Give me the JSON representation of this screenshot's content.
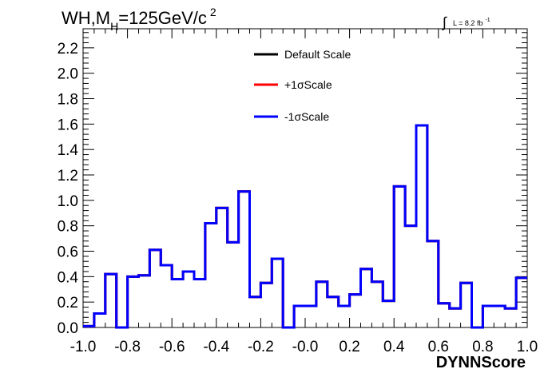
{
  "chart_data": {
    "type": "line",
    "subtype": "step-histogram",
    "title": {
      "prefix": "WH,M",
      "subscript": "H",
      "main": "=125GeV/c",
      "superscript": "2"
    },
    "luminosity": {
      "integral": "∫",
      "text": "L = 8.2 fb",
      "superscript": "-1"
    },
    "xlabel": "DYNNScore",
    "ylabel": "",
    "xlim": [
      -1.0,
      1.0
    ],
    "ylim": [
      0.0,
      2.35
    ],
    "x_ticks": [
      "-1.0",
      "-0.8",
      "-0.6",
      "-0.4",
      "-0.2",
      "-0.0",
      "0.2",
      "0.4",
      "0.6",
      "0.8",
      "1.0"
    ],
    "y_ticks": [
      "0.0",
      "0.2",
      "0.4",
      "0.6",
      "0.8",
      "1.0",
      "1.2",
      "1.4",
      "1.6",
      "1.8",
      "2.0",
      "2.2"
    ],
    "grid": false,
    "legend_position": "top-center",
    "bin_edges_start": -1.0,
    "bin_width": 0.05,
    "series": [
      {
        "name": "Default Scale",
        "color": "#000000",
        "values": [
          0.01,
          0.11,
          0.42,
          0.0,
          0.4,
          0.41,
          0.61,
          0.49,
          0.38,
          0.44,
          0.38,
          0.82,
          0.94,
          0.67,
          1.07,
          0.24,
          0.35,
          0.54,
          0.0,
          0.17,
          0.17,
          0.36,
          0.24,
          0.17,
          0.26,
          0.46,
          0.36,
          0.21,
          1.11,
          0.8,
          1.59,
          0.68,
          0.19,
          0.15,
          0.35,
          0.0,
          0.17,
          0.17,
          0.15,
          0.39
        ]
      },
      {
        "name": "+1σScale",
        "color": "#ff0000",
        "values": [
          0.01,
          0.11,
          0.42,
          0.0,
          0.4,
          0.41,
          0.61,
          0.49,
          0.38,
          0.44,
          0.38,
          0.82,
          0.94,
          0.67,
          1.07,
          0.24,
          0.35,
          0.54,
          0.0,
          0.17,
          0.17,
          0.36,
          0.24,
          0.17,
          0.26,
          0.46,
          0.36,
          0.21,
          1.11,
          0.8,
          1.59,
          0.68,
          0.19,
          0.15,
          0.35,
          0.0,
          0.17,
          0.17,
          0.15,
          0.39
        ]
      },
      {
        "name": "-1σScale",
        "color": "#0000ff",
        "values": [
          0.01,
          0.11,
          0.42,
          0.0,
          0.4,
          0.41,
          0.61,
          0.49,
          0.38,
          0.44,
          0.38,
          0.82,
          0.94,
          0.67,
          1.07,
          0.24,
          0.35,
          0.54,
          0.0,
          0.17,
          0.17,
          0.36,
          0.24,
          0.17,
          0.26,
          0.46,
          0.36,
          0.21,
          1.11,
          0.8,
          1.59,
          0.68,
          0.19,
          0.15,
          0.35,
          0.0,
          0.17,
          0.17,
          0.15,
          0.39
        ]
      }
    ]
  }
}
